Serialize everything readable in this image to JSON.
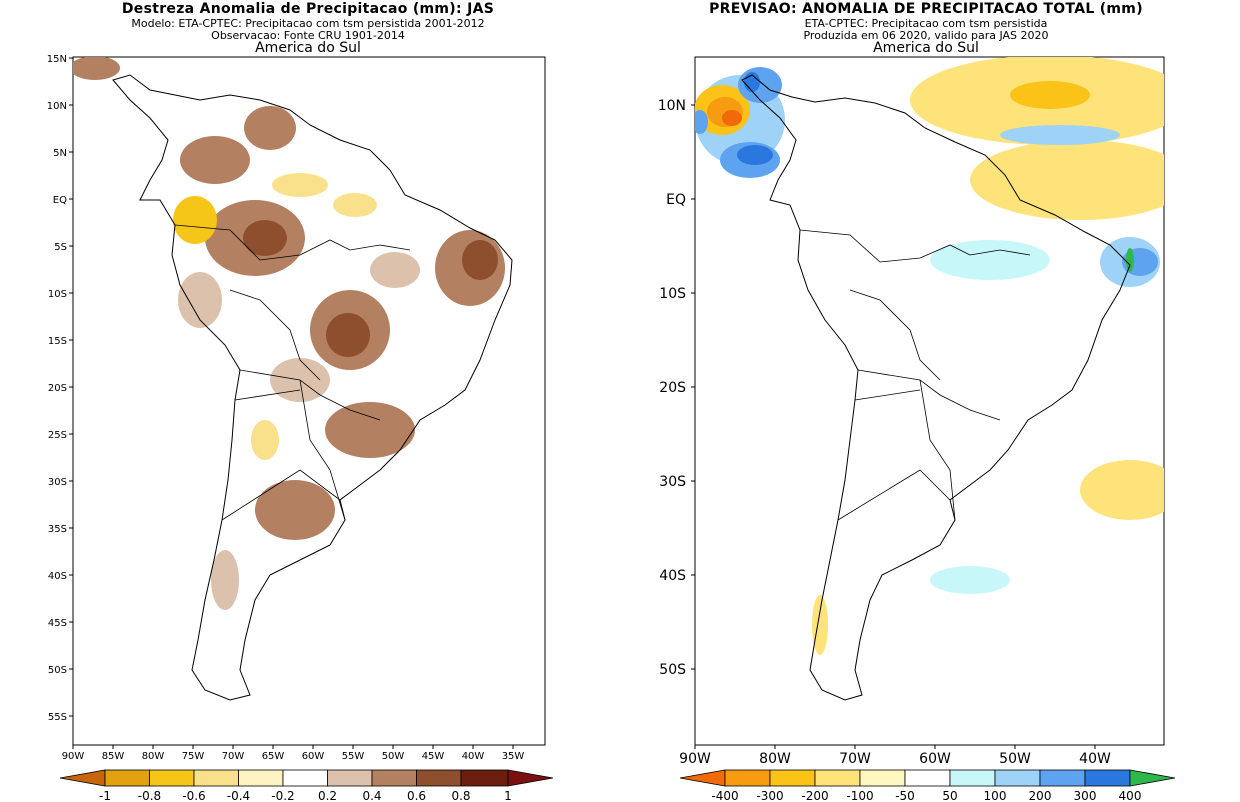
{
  "left_panel": {
    "title": "Destreza Anomalia de Precipitacao (mm): JAS",
    "subtitle1": "Modelo: ETA-CPTEC: Precipitacao com tsm persistida 2001-2012",
    "subtitle2": "Observacao: Fonte CRU 1901-2014",
    "region": "America do Sul",
    "lat_labels": [
      "15N",
      "10N",
      "5N",
      "EQ",
      "5S",
      "10S",
      "15S",
      "20S",
      "25S",
      "30S",
      "35S",
      "40S",
      "45S",
      "50S",
      "55S"
    ],
    "lon_labels": [
      "90W",
      "85W",
      "80W",
      "75W",
      "70W",
      "65W",
      "60W",
      "55W",
      "50W",
      "45W",
      "40W",
      "35W"
    ],
    "colorbar": {
      "labels": [
        "-1",
        "-0.8",
        "-0.6",
        "-0.4",
        "-0.2",
        "0.2",
        "0.4",
        "0.6",
        "0.8",
        "1"
      ],
      "colors": [
        "#c8650a",
        "#e3a00f",
        "#f5c518",
        "#f9e08a",
        "#fdf3c2",
        "#ffffff",
        "#dcc1ad",
        "#b38062",
        "#8e4f2f",
        "#6b1e10",
        "#7a1010"
      ]
    }
  },
  "right_panel": {
    "title": "PREVISAO: ANOMALIA DE PRECIPITACAO TOTAL (mm)",
    "subtitle1": "ETA-CPTEC: Precipitacao com tsm persistida",
    "subtitle2": "Produzida em 06 2020, valido para JAS 2020",
    "region": "America do Sul",
    "lat_labels": [
      "10N",
      "EQ",
      "10S",
      "20S",
      "30S",
      "40S",
      "50S"
    ],
    "lon_labels": [
      "90W",
      "80W",
      "70W",
      "60W",
      "50W",
      "40W"
    ],
    "colorbar": {
      "labels": [
        "-400",
        "-300",
        "-200",
        "-100",
        "-50",
        "50",
        "100",
        "200",
        "300",
        "400"
      ],
      "colors": [
        "#f06a0a",
        "#f79b10",
        "#fbc218",
        "#fde37a",
        "#fff7bf",
        "#ffffff",
        "#c8f7fa",
        "#9ed2f7",
        "#5ea3ef",
        "#2a78dd",
        "#2fb84a"
      ]
    }
  }
}
